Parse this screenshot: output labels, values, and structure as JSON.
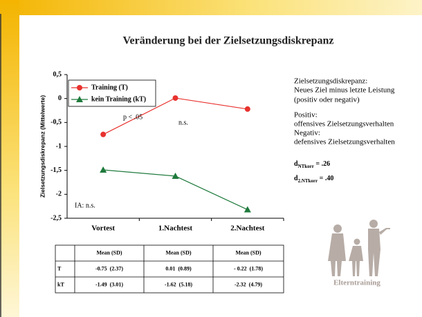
{
  "title": "Veränderung bei der Zielsetzungsdiskrepanz",
  "chart_data": {
    "type": "line",
    "ylabel": "Zielsetzungsdiskrepanz (Mittelwerte)",
    "categories": [
      "Vortest",
      "1.Nachtest",
      "2.Nachtest"
    ],
    "series": [
      {
        "name": "Training (T)",
        "color": "#e8322e",
        "marker": "circle",
        "values": [
          -0.75,
          0.01,
          -0.22
        ]
      },
      {
        "name": "kein Training (kT)",
        "color": "#1e7a3c",
        "marker": "triangle",
        "values": [
          -1.49,
          -1.62,
          -2.32
        ]
      }
    ],
    "ylim": [
      -2.5,
      0.5
    ],
    "yticks": [
      {
        "value": 0.5,
        "label": "0,5"
      },
      0,
      {
        "value": -0.5,
        "label": "-0,5"
      },
      -1,
      {
        "value": -1.5,
        "label": "-1,5"
      },
      -2,
      {
        "value": -2.5,
        "label": "-2,5"
      }
    ],
    "legend": "upper left",
    "annotations": [
      "p < .05",
      "n.s.",
      "IA: n.s."
    ]
  },
  "table": {
    "columns": [
      "Mean (SD)",
      "Mean (SD)",
      "Mean (SD)"
    ],
    "rows": [
      [
        "T",
        "-0.75  (2.37)",
        "0.01  (0.89)",
        "- 0.22  (1.78)"
      ],
      [
        "kT",
        "-1.49  (3.01)",
        "-1.62  (5.18)",
        "-2.32  (4.79)"
      ]
    ]
  },
  "notes": {
    "lines": [
      "Zielsetzungsdiskrepanz:",
      "Neues Ziel minus letzte Leistung",
      "(positiv oder negativ)",
      "Positiv:",
      "offensives Zielsetzungsverhalten",
      "Negativ:",
      "defensives Zielsetzungsverhalten"
    ],
    "effects": [
      {
        "symbol": "d",
        "subscript": "NTkorr",
        "value": " = .26"
      },
      {
        "symbol": "d",
        "subscript": "2.NTkorr",
        "value": " = .40"
      }
    ]
  },
  "image_caption": "Elterntraining"
}
